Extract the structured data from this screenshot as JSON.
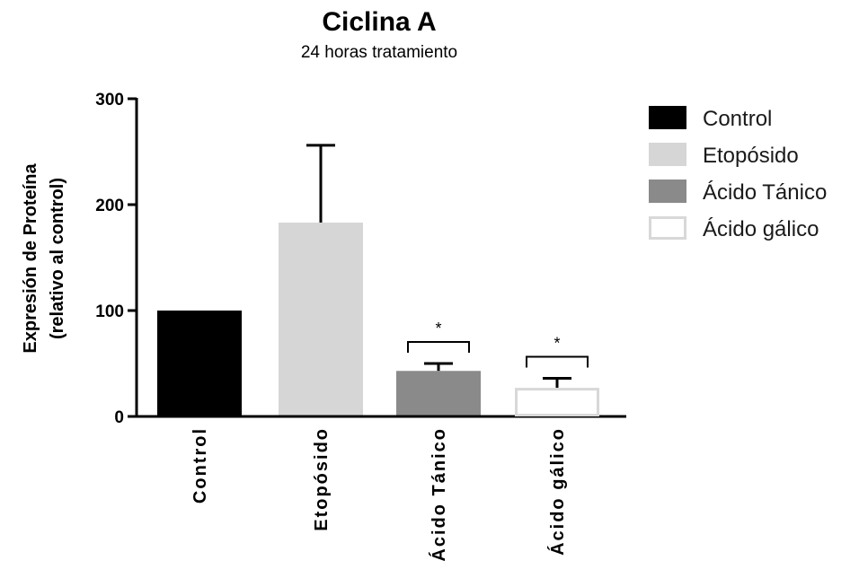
{
  "chart_data": {
    "type": "bar",
    "title": "Ciclina A",
    "subtitle": "24 horas tratamiento",
    "ylabel_line1": "Expresión de Proteína",
    "ylabel_line2": "(relativo al control)",
    "xlabel": "",
    "ylim": [
      0,
      300
    ],
    "yticks": [
      0,
      100,
      200,
      300
    ],
    "ytick_labels": [
      "0",
      "100",
      "200",
      "300"
    ],
    "categories": [
      "Control",
      "Etopósido",
      "Ácido Tánico",
      "Ácido gálico"
    ],
    "values": [
      100,
      183,
      43,
      27
    ],
    "error_upper": [
      0,
      73,
      7,
      9
    ],
    "significance": [
      "",
      "",
      "*",
      "*"
    ],
    "bar_colors": [
      "#000000",
      "#d6d6d6",
      "#8a8a8a",
      "#ffffff"
    ],
    "bar_edge_colors": [
      "#000000",
      "#d6d6d6",
      "#8a8a8a",
      "#d8d8d8"
    ],
    "legend": {
      "position": "right",
      "entries": [
        "Control",
        "Etopósido",
        "Ácido Tánico",
        "Ácido gálico"
      ]
    },
    "grid": false
  }
}
